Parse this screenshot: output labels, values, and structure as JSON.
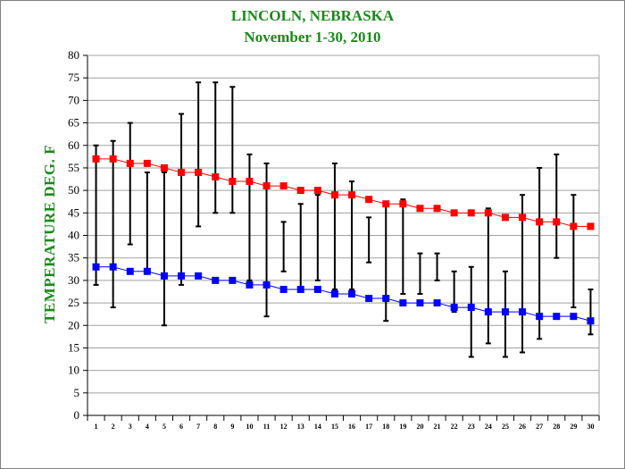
{
  "title": "LINCOLN, NEBRASKA",
  "subtitle": "November 1-30, 2010",
  "chart_data": {
    "type": "line",
    "title": "LINCOLN, NEBRASKA",
    "subtitle": "November 1-30, 2010",
    "xlabel": "",
    "ylabel": "TEMPERATURE DEG. F",
    "ylim": [
      0,
      80
    ],
    "yticks": [
      0,
      5,
      10,
      15,
      20,
      25,
      30,
      35,
      40,
      45,
      50,
      55,
      60,
      65,
      70,
      75,
      80
    ],
    "x": [
      1,
      2,
      3,
      4,
      5,
      6,
      7,
      8,
      9,
      10,
      11,
      12,
      13,
      14,
      15,
      16,
      17,
      18,
      19,
      20,
      21,
      22,
      23,
      24,
      25,
      26,
      27,
      28,
      29,
      30
    ],
    "grid": "horizontal",
    "series": [
      {
        "color": "#ff0000",
        "values": [
          57,
          57,
          56,
          56,
          55,
          54,
          54,
          53,
          52,
          52,
          51,
          51,
          50,
          50,
          49,
          49,
          48,
          47,
          47,
          46,
          46,
          45,
          45,
          45,
          44,
          44,
          43,
          43,
          42,
          42
        ]
      },
      {
        "color": "#0000ff",
        "values": [
          33,
          33,
          32,
          32,
          31,
          31,
          31,
          30,
          30,
          29,
          29,
          28,
          28,
          28,
          27,
          27,
          26,
          26,
          25,
          25,
          25,
          24,
          24,
          23,
          23,
          23,
          22,
          22,
          22,
          21
        ]
      }
    ],
    "daily_range": {
      "color": "#000000",
      "high": [
        60,
        61,
        65,
        54,
        54,
        67,
        74,
        74,
        73,
        58,
        56,
        43,
        47,
        49,
        56,
        52,
        44,
        47,
        48,
        36,
        36,
        32,
        33,
        46,
        32,
        49,
        55,
        58,
        49,
        28
      ],
      "low": [
        29,
        24,
        38,
        32,
        20,
        29,
        42,
        45,
        45,
        30,
        22,
        32,
        28,
        30,
        28,
        28,
        34,
        21,
        27,
        27,
        30,
        23,
        13,
        16,
        13,
        14,
        17,
        35,
        24,
        18
      ]
    }
  }
}
